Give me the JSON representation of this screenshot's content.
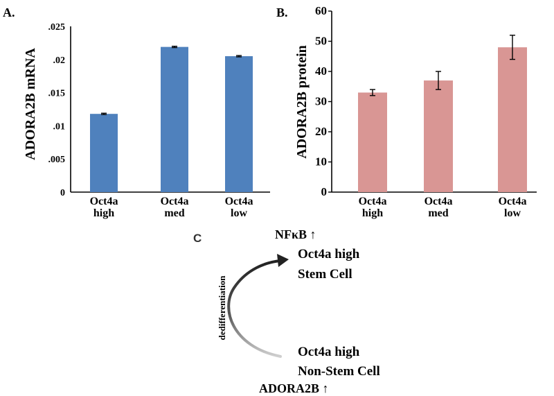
{
  "chart_data": [
    {
      "type": "bar",
      "panel_label": "A.",
      "ylabel": "ADORA2B mRNA",
      "categories": [
        [
          "Oct4a",
          "high"
        ],
        [
          "Oct4a",
          "med"
        ],
        [
          "Oct4a",
          "low"
        ]
      ],
      "values": [
        0.0118,
        0.0219,
        0.0205
      ],
      "errors": [
        0.0001,
        0.0001,
        0.0001
      ],
      "ylim": [
        0,
        0.025
      ],
      "yticks": [
        0,
        0.005,
        0.01,
        0.015,
        0.02,
        0.025
      ],
      "ytick_labels": [
        "0",
        ".005",
        ".01",
        ".015",
        ".02",
        ".025"
      ],
      "bar_color": "#4f81bd",
      "grid": false
    },
    {
      "type": "bar",
      "panel_label": "B.",
      "ylabel": "ADORA2B protein",
      "categories": [
        [
          "Oct4a",
          "high"
        ],
        [
          "Oct4a",
          "med"
        ],
        [
          "Oct4a",
          "low"
        ]
      ],
      "values": [
        33,
        37,
        48
      ],
      "errors": [
        1,
        3,
        4
      ],
      "ylim": [
        0,
        60
      ],
      "yticks": [
        0,
        10,
        20,
        30,
        40,
        50,
        60
      ],
      "ytick_labels": [
        "0",
        "10",
        "20",
        "30",
        "40",
        "50",
        "60"
      ],
      "bar_color": "#d99694",
      "grid": false
    }
  ],
  "diagram": {
    "panel_label": "C",
    "top_marker": "NFκB ↑",
    "top_cell": [
      "Oct4a high",
      "Stem Cell"
    ],
    "arrow_label": "dedifferentiation",
    "bottom_cell": [
      "Oct4a high",
      "Non-Stem Cell"
    ],
    "bottom_marker": "ADORA2B ↑"
  }
}
